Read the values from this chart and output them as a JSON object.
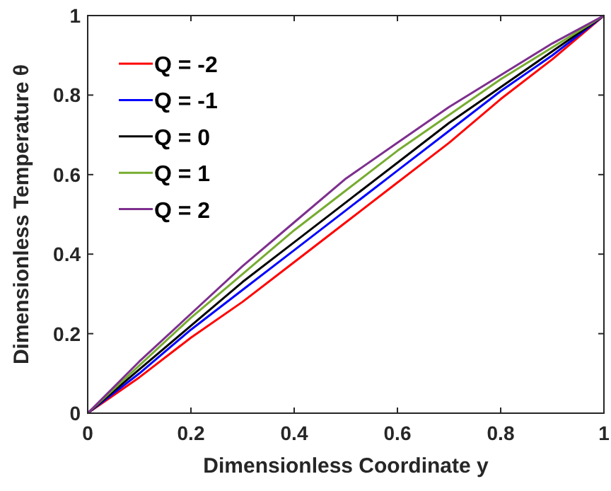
{
  "chart_data": {
    "type": "line",
    "xlabel": "Dimensionless Coordinate y",
    "ylabel": "Dimensionless Temperature θ",
    "x": [
      0,
      0.1,
      0.2,
      0.3,
      0.4,
      0.5,
      0.6,
      0.7,
      0.8,
      0.9,
      1
    ],
    "series": [
      {
        "name": "Q = -2",
        "color": "#ff0000",
        "values": [
          0,
          0.09,
          0.19,
          0.28,
          0.38,
          0.48,
          0.58,
          0.68,
          0.79,
          0.89,
          1
        ]
      },
      {
        "name": "Q = -1",
        "color": "#0000ff",
        "values": [
          0,
          0.1,
          0.21,
          0.31,
          0.41,
          0.51,
          0.61,
          0.71,
          0.81,
          0.9,
          1
        ]
      },
      {
        "name": "Q = 0",
        "color": "#000000",
        "values": [
          0,
          0.11,
          0.22,
          0.33,
          0.43,
          0.53,
          0.63,
          0.73,
          0.82,
          0.91,
          1
        ]
      },
      {
        "name": "Q = 1",
        "color": "#77ac30",
        "values": [
          0,
          0.12,
          0.24,
          0.35,
          0.46,
          0.56,
          0.66,
          0.75,
          0.84,
          0.92,
          1
        ]
      },
      {
        "name": "Q = 2",
        "color": "#7e2f8e",
        "values": [
          0,
          0.13,
          0.25,
          0.37,
          0.48,
          0.59,
          0.68,
          0.77,
          0.85,
          0.93,
          1
        ]
      }
    ],
    "xlim": [
      0,
      1
    ],
    "ylim": [
      0,
      1
    ],
    "xticks": [
      0,
      0.2,
      0.4,
      0.6,
      0.8,
      1
    ],
    "yticks": [
      0,
      0.2,
      0.4,
      0.6,
      0.8,
      1
    ],
    "legend": "top left",
    "grid": false,
    "marker": "none",
    "line_style": "solid"
  }
}
